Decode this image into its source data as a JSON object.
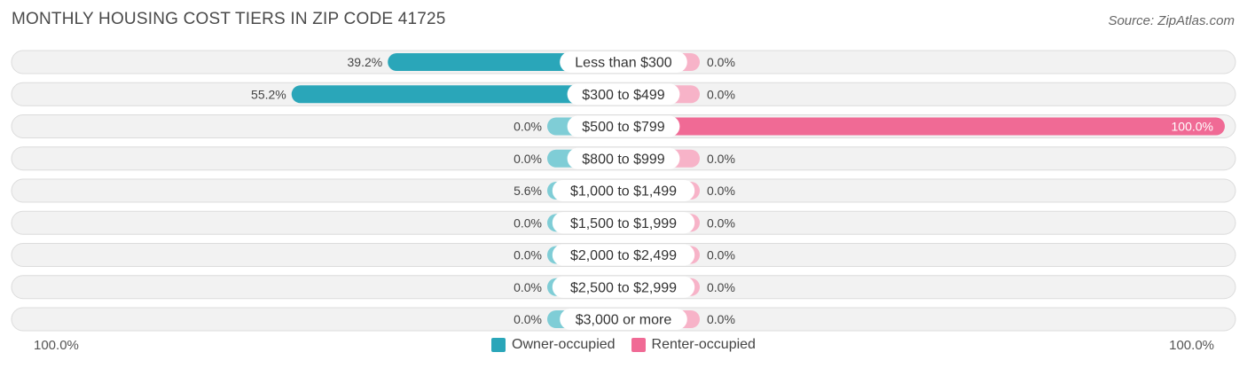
{
  "header": {
    "title": "MONTHLY HOUSING COST TIERS IN ZIP CODE 41725",
    "source": "Source: ZipAtlas.com"
  },
  "axis": {
    "left_label": "100.0%",
    "right_label": "100.0%"
  },
  "legend": {
    "owner_label": "Owner-occupied",
    "renter_label": "Renter-occupied"
  },
  "colors": {
    "owner_strong": "#2aa6b9",
    "owner_light": "#7fcdd6",
    "renter_strong": "#f06a95",
    "renter_light": "#f7b3c8",
    "row_bg": "#f2f2f2",
    "row_border": "#dcdcdc"
  },
  "chart_data": {
    "type": "bar",
    "orientation": "diverging-horizontal",
    "categories": [
      "Less than $300",
      "$300 to $499",
      "$500 to $799",
      "$800 to $999",
      "$1,000 to $1,499",
      "$1,500 to $1,999",
      "$2,000 to $2,499",
      "$2,500 to $2,999",
      "$3,000 or more"
    ],
    "series": [
      {
        "name": "Owner-occupied",
        "values": [
          39.2,
          55.2,
          0.0,
          0.0,
          5.6,
          0.0,
          0.0,
          0.0,
          0.0
        ],
        "labels": [
          "39.2%",
          "55.2%",
          "0.0%",
          "0.0%",
          "5.6%",
          "0.0%",
          "0.0%",
          "0.0%",
          "0.0%"
        ]
      },
      {
        "name": "Renter-occupied",
        "values": [
          0.0,
          0.0,
          100.0,
          0.0,
          0.0,
          0.0,
          0.0,
          0.0,
          0.0
        ],
        "labels": [
          "0.0%",
          "0.0%",
          "100.0%",
          "0.0%",
          "0.0%",
          "0.0%",
          "0.0%",
          "0.0%",
          "0.0%"
        ]
      }
    ],
    "xlim": [
      -100,
      100
    ],
    "legend_position": "bottom-center"
  }
}
